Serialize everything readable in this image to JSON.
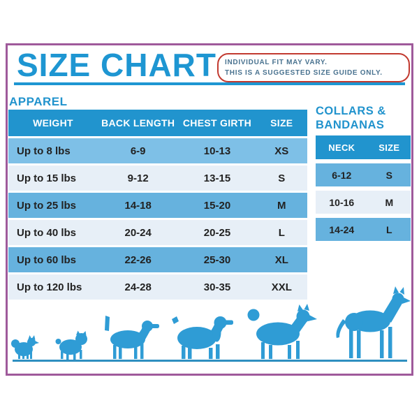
{
  "page": {
    "title": "SIZE CHART",
    "disclaimer_line1": "INDIVIDUAL FIT MAY VARY.",
    "disclaimer_line2": "THIS IS A SUGGESTED SIZE GUIDE ONLY."
  },
  "apparel_section": {
    "heading": "APPAREL"
  },
  "collars_section": {
    "heading_line1": "COLLARS &",
    "heading_line2": "BANDANAS"
  },
  "dogs": [
    "pomeranian",
    "pug",
    "beagle",
    "cocker-spaniel",
    "husky",
    "great-dane"
  ],
  "colors": {
    "accent_blue": "#1e96d2",
    "table_header_blue": "#2194ce",
    "row_medium_blue": "#66b2de",
    "row_first_blue": "#7ec0e7",
    "row_light_blue": "#e7eff7",
    "disclaimer_text_blue_gray": "#4a7390",
    "disclaimer_border_red": "#c23a30",
    "frame_purple": "#9f5a9b",
    "dog_blue": "#2f9cd5",
    "ground_line_blue": "#2e8fc0"
  },
  "chart_data": [
    {
      "type": "table",
      "title": "APPAREL",
      "columns": [
        "WEIGHT",
        "BACK LENGTH",
        "CHEST GIRTH",
        "SIZE"
      ],
      "rows": [
        [
          "Up to 8 lbs",
          "6-9",
          "10-13",
          "XS"
        ],
        [
          "Up to 15 lbs",
          "9-12",
          "13-15",
          "S"
        ],
        [
          "Up to 25 lbs",
          "14-18",
          "15-20",
          "M"
        ],
        [
          "Up to 40 lbs",
          "20-24",
          "20-25",
          "L"
        ],
        [
          "Up to 60 lbs",
          "22-26",
          "25-30",
          "XL"
        ],
        [
          "Up to 120 lbs",
          "24-28",
          "30-35",
          "XXL"
        ]
      ]
    },
    {
      "type": "table",
      "title": "COLLARS & BANDANAS",
      "columns": [
        "NECK",
        "SIZE"
      ],
      "rows": [
        [
          "6-12",
          "S"
        ],
        [
          "10-16",
          "M"
        ],
        [
          "14-24",
          "L"
        ]
      ]
    }
  ]
}
